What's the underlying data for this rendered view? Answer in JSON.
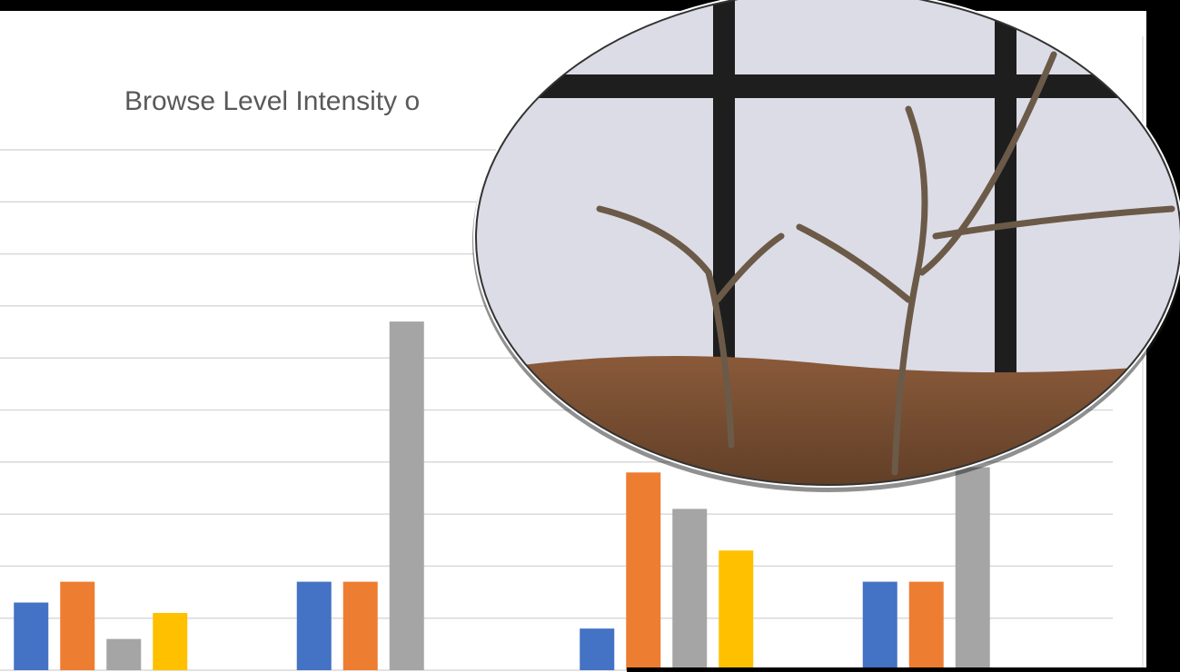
{
  "chart_data": {
    "type": "bar",
    "title": "Browse Level Intensity o",
    "categories": [
      null,
      null,
      null,
      null
    ],
    "series": [
      {
        "color": "#4472c4",
        "values": [
          1.3,
          1.7,
          0.8,
          1.7
        ]
      },
      {
        "color": "#ed7d31",
        "values": [
          1.7,
          1.7,
          3.8,
          1.7
        ]
      },
      {
        "color": "#a5a5a5",
        "values": [
          0.6,
          6.7,
          3.1,
          3.9
        ]
      },
      {
        "color": "#ffc000",
        "values": [
          1.1,
          null,
          2.3,
          null
        ]
      }
    ],
    "ylim": [
      0,
      10
    ],
    "yticks": [
      0,
      1,
      2,
      3,
      4,
      5,
      6,
      7,
      8,
      9,
      10
    ],
    "grid": true
  }
}
